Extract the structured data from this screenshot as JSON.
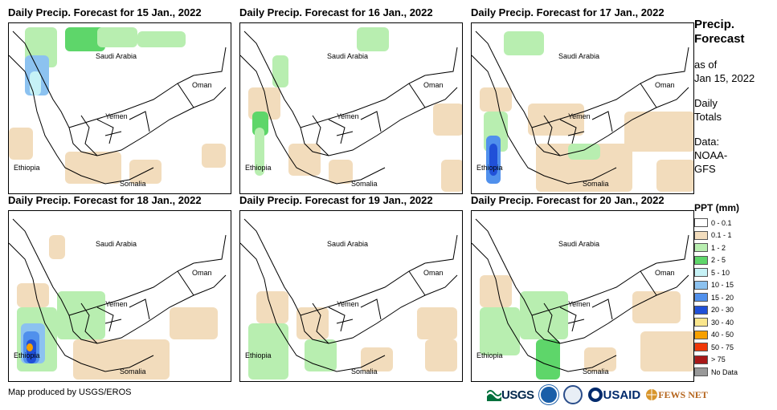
{
  "panels": [
    {
      "title": "Daily Precip. Forecast for 15 Jan., 2022"
    },
    {
      "title": "Daily Precip. Forecast for 16 Jan., 2022"
    },
    {
      "title": "Daily Precip. Forecast for 17 Jan., 2022"
    },
    {
      "title": "Daily Precip. Forecast for 18 Jan., 2022"
    },
    {
      "title": "Daily Precip. Forecast for 19 Jan., 2022"
    },
    {
      "title": "Daily Precip. Forecast for 20 Jan., 2022"
    }
  ],
  "map_labels": {
    "saudi_arabia": "Saudi Arabia",
    "oman": "Oman",
    "yemen": "Yemen",
    "ethiopia": "Ethiopia",
    "somalia": "Somalia"
  },
  "sidebar": {
    "title_line1": "Precip.",
    "title_line2": "Forecast",
    "asof_line1": "as of",
    "asof_line2": "Jan 15, 2022",
    "daily_line1": "Daily",
    "daily_line2": "Totals",
    "data_line1": "Data:",
    "data_line2": "NOAA-",
    "data_line3": "GFS"
  },
  "legend": {
    "title": "PPT (mm)",
    "items": [
      {
        "label": "0 - 0.1",
        "color": "#ffffff"
      },
      {
        "label": "0.1 - 1",
        "color": "#f2dcbc"
      },
      {
        "label": "1 - 2",
        "color": "#b8eeb0"
      },
      {
        "label": "2 - 5",
        "color": "#5ed66a"
      },
      {
        "label": "5 - 10",
        "color": "#c6f2f6"
      },
      {
        "label": "10 - 15",
        "color": "#8cc2f0"
      },
      {
        "label": "15 - 20",
        "color": "#5090ec"
      },
      {
        "label": "20 - 30",
        "color": "#2050d8"
      },
      {
        "label": "30 - 40",
        "color": "#fae68c"
      },
      {
        "label": "40 - 50",
        "color": "#f6a000"
      },
      {
        "label": "50 - 75",
        "color": "#f03808"
      },
      {
        "label": "> 75",
        "color": "#a81818"
      },
      {
        "label": "No Data",
        "color": "#999999"
      }
    ]
  },
  "credit": "Map produced by USGS/EROS",
  "logos": {
    "usgs": "USGS",
    "usaid": "USAID",
    "fews": "FEWS NET"
  }
}
